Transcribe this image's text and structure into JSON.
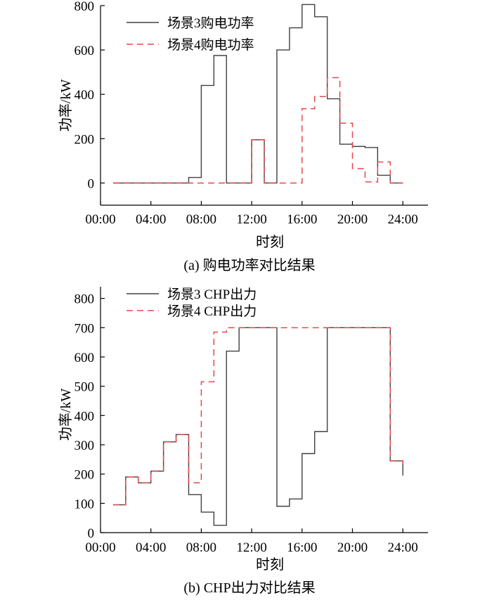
{
  "charts": [
    {
      "caption": "(a)  购电功率对比结果",
      "xlabel": "时刻",
      "ylabel": "功率/kW",
      "x_tick_labels": [
        "00:00",
        "04:00",
        "08:00",
        "12:00",
        "16:00",
        "20:00",
        "24:00"
      ],
      "y_tick_labels": [
        "0",
        "200",
        "400",
        "600",
        "800"
      ],
      "legend": [
        "场景3购电功率",
        "场景4购电功率"
      ]
    },
    {
      "caption": "(b)  CHP出力对比结果",
      "xlabel": "时刻",
      "ylabel": "功率/kW",
      "x_tick_labels": [
        "00:00",
        "04:00",
        "08:00",
        "12:00",
        "16:00",
        "20:00",
        "24:00"
      ],
      "y_tick_labels": [
        "0",
        "100",
        "200",
        "300",
        "400",
        "500",
        "600",
        "700",
        "800"
      ],
      "legend": [
        "场景3 CHP出力",
        "场景4 CHP出力"
      ]
    }
  ],
  "chart_data": [
    {
      "type": "line",
      "step": true,
      "title": "(a)  购电功率对比结果",
      "xlabel": "时刻",
      "ylabel": "功率/kW",
      "xlim": [
        0,
        26
      ],
      "ylim": [
        -100,
        800
      ],
      "x_ticks": [
        0,
        4,
        8,
        12,
        16,
        20,
        24
      ],
      "y_ticks": [
        0,
        200,
        400,
        600,
        800
      ],
      "legend_position": "top-left",
      "x": [
        1,
        2,
        3,
        4,
        5,
        6,
        7,
        8,
        9,
        10,
        11,
        12,
        13,
        14,
        15,
        16,
        17,
        18,
        19,
        20,
        21,
        22,
        23,
        24
      ],
      "series": [
        {
          "name": "场景3购电功率",
          "style": "solid",
          "color": "#404040",
          "values": [
            0,
            0,
            0,
            0,
            0,
            0,
            25,
            440,
            575,
            0,
            0,
            195,
            0,
            600,
            700,
            805,
            750,
            380,
            175,
            165,
            160,
            35,
            0,
            0
          ]
        },
        {
          "name": "场景4购电功率",
          "style": "dashed",
          "color": "#e8474c",
          "values": [
            0,
            0,
            0,
            0,
            0,
            0,
            0,
            0,
            0,
            0,
            0,
            195,
            0,
            0,
            0,
            335,
            390,
            475,
            270,
            65,
            5,
            95,
            0,
            0
          ]
        }
      ]
    },
    {
      "type": "line",
      "step": true,
      "title": "(b)  CHP出力对比结果",
      "xlabel": "时刻",
      "ylabel": "功率/kW",
      "xlim": [
        0,
        26
      ],
      "ylim": [
        0,
        840
      ],
      "x_ticks": [
        0,
        4,
        8,
        12,
        16,
        20,
        24
      ],
      "y_ticks": [
        0,
        100,
        200,
        300,
        400,
        500,
        600,
        700,
        800
      ],
      "legend_position": "top-left",
      "x": [
        1,
        2,
        3,
        4,
        5,
        6,
        7,
        8,
        9,
        10,
        11,
        12,
        13,
        14,
        15,
        16,
        17,
        18,
        19,
        20,
        21,
        22,
        23,
        24
      ],
      "series": [
        {
          "name": "场景3 CHP出力",
          "style": "solid",
          "color": "#404040",
          "values": [
            95,
            190,
            170,
            210,
            310,
            335,
            130,
            70,
            25,
            620,
            700,
            700,
            700,
            90,
            115,
            270,
            345,
            700,
            700,
            700,
            700,
            700,
            245,
            195
          ]
        },
        {
          "name": "场景4 CHP出力",
          "style": "dashed",
          "color": "#e8474c",
          "values": [
            95,
            190,
            170,
            210,
            310,
            335,
            170,
            515,
            685,
            700,
            700,
            700,
            700,
            700,
            700,
            700,
            700,
            700,
            700,
            700,
            700,
            700,
            245,
            235
          ]
        }
      ]
    }
  ],
  "colors": {
    "axis": "#000000",
    "series_solid": "#404040",
    "series_dashed": "#e8474c"
  }
}
